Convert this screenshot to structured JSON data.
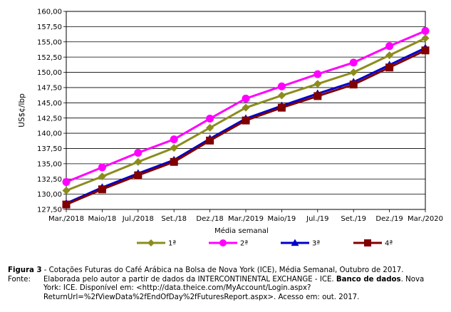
{
  "chart_data": {
    "type": "line",
    "categories": [
      "Mar./2018",
      "Maio/18",
      "Jul./2018",
      "Set./18",
      "Dez./18",
      "Mar./2019",
      "Maio/19",
      "Jul./19",
      "Set./19",
      "Dez./19",
      "Mar./2020"
    ],
    "series": [
      {
        "name": "1ª",
        "values": [
          130.6,
          132.9,
          135.3,
          137.6,
          140.9,
          144.2,
          146.2,
          148.1,
          150.0,
          152.8,
          155.6
        ],
        "color": "#8c8c1e",
        "marker": "diamond"
      },
      {
        "name": "2ª",
        "values": [
          132.0,
          134.4,
          136.8,
          139.0,
          142.4,
          145.7,
          147.7,
          149.7,
          151.6,
          154.3,
          156.8
        ],
        "color": "#ff00ff",
        "marker": "circle"
      },
      {
        "name": "3ª",
        "values": [
          128.5,
          131.1,
          133.4,
          135.6,
          139.1,
          142.4,
          144.5,
          146.5,
          148.4,
          151.2,
          154.0
        ],
        "color": "#0000cc",
        "marker": "triangle"
      },
      {
        "name": "4ª",
        "values": [
          128.3,
          130.8,
          133.1,
          135.3,
          138.8,
          142.1,
          144.2,
          146.1,
          148.0,
          150.8,
          153.6
        ],
        "color": "#800000",
        "marker": "square"
      }
    ],
    "title": "",
    "xlabel": "Média semanal",
    "ylabel": "US$¢/lbp",
    "ylim": [
      127.5,
      160.0
    ],
    "yticks": [
      "127,50",
      "130,00",
      "132,50",
      "135,00",
      "137,50",
      "140,00",
      "142,50",
      "145,00",
      "147,50",
      "150,00",
      "152,50",
      "155,00",
      "157,50",
      "160,00"
    ],
    "grid": true,
    "legend": "bottom"
  },
  "caption": {
    "figure_label": "Figura 3",
    "figure_text": " - Cotações Futuras do Café Arábica na Bolsa de Nova York (ICE), Média Semanal, Outubro de 2017.",
    "source_label": "Fonte:",
    "source_text_1": "Elaborada pelo autor a partir de dados da INTERCONTINENTAL EXCHANGE - ICE. ",
    "source_bold": "Banco de dados",
    "source_text_2": ". Nova York: ICE. Disponível em: <http://data.theice.com/MyAccount/Login.aspx?ReturnUrl=%2fViewData%2fEndOfDay%2fFuturesReport.aspx>. Acesso em: out. 2017."
  }
}
